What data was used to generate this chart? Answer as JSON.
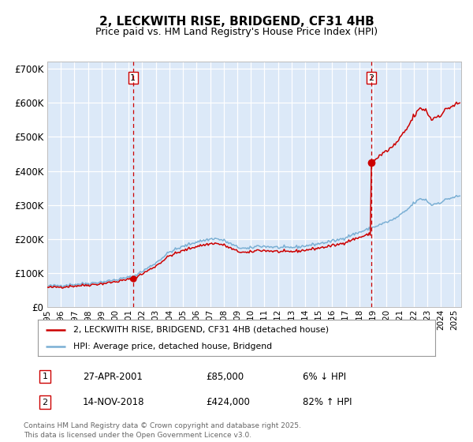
{
  "title": "2, LECKWITH RISE, BRIDGEND, CF31 4HB",
  "subtitle": "Price paid vs. HM Land Registry's House Price Index (HPI)",
  "legend_entry1": "2, LECKWITH RISE, BRIDGEND, CF31 4HB (detached house)",
  "legend_entry2": "HPI: Average price, detached house, Bridgend",
  "annotation1_label": "1",
  "annotation1_date": "27-APR-2001",
  "annotation1_price": 85000,
  "annotation1_pct": "6% ↓ HPI",
  "annotation2_label": "2",
  "annotation2_date": "14-NOV-2018",
  "annotation2_price": 424000,
  "annotation2_pct": "82% ↑ HPI",
  "date1_x": 2001.32,
  "date2_x": 2018.87,
  "fig_bg_color": "#ffffff",
  "plot_bg_color": "#dce9f8",
  "grid_color": "#ffffff",
  "line1_color": "#cc0000",
  "line2_color": "#7aafd4",
  "vline_color": "#cc0000",
  "marker_color": "#cc0000",
  "xmin": 1995.0,
  "xmax": 2025.5,
  "ymin": 0,
  "ymax": 720000,
  "yticks": [
    0,
    100000,
    200000,
    300000,
    400000,
    500000,
    600000,
    700000
  ],
  "xticks": [
    1995,
    1996,
    1997,
    1998,
    1999,
    2000,
    2001,
    2002,
    2003,
    2004,
    2005,
    2006,
    2007,
    2008,
    2009,
    2010,
    2011,
    2012,
    2013,
    2014,
    2015,
    2016,
    2017,
    2018,
    2019,
    2020,
    2021,
    2022,
    2023,
    2024,
    2025
  ],
  "sale1_t": 2001.32,
  "sale1_p": 85000,
  "sale2_t": 2018.87,
  "sale2_p": 424000,
  "footer": "Contains HM Land Registry data © Crown copyright and database right 2025.\nThis data is licensed under the Open Government Licence v3.0."
}
